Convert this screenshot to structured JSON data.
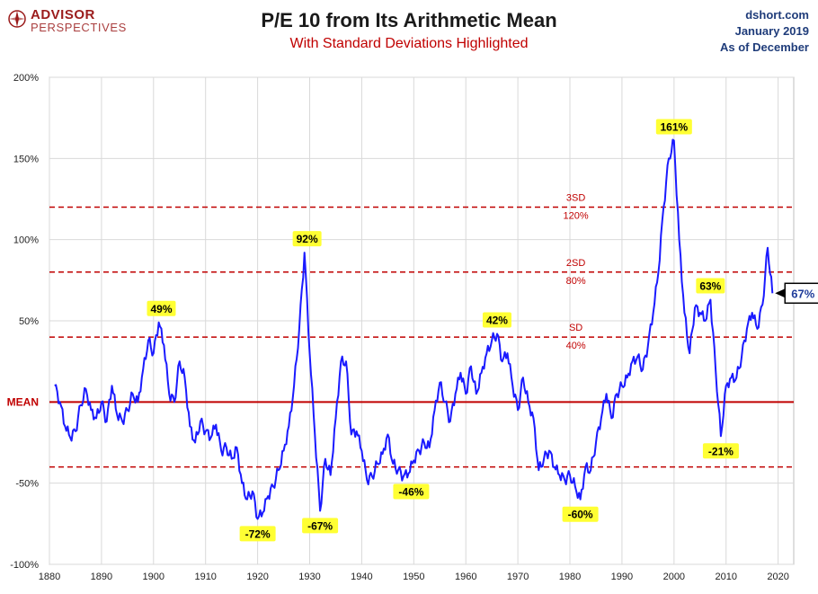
{
  "header": {
    "logo_line1": "ADVISOR",
    "logo_line2": "PERSPECTIVES",
    "title": "P/E 10 from Its Arithmetic Mean",
    "subtitle": "With Standard Deviations Highlighted",
    "source_line1": "dshort.com",
    "source_line2": "January 2019",
    "source_line3": "As of December"
  },
  "colors": {
    "series": "#1a1aff",
    "reference": "#c00000",
    "callout_bg": "#ffff33",
    "grid": "#d9d9d9"
  },
  "chart_data": {
    "type": "line",
    "xlim": [
      1880,
      2023
    ],
    "ylim": [
      -100,
      200
    ],
    "x_ticks": [
      1880,
      1890,
      1900,
      1910,
      1920,
      1930,
      1940,
      1950,
      1960,
      1970,
      1980,
      1990,
      2000,
      2010,
      2020
    ],
    "y_ticks": [
      {
        "value": 200,
        "label": "200%"
      },
      {
        "value": 150,
        "label": "150%"
      },
      {
        "value": 100,
        "label": "100%"
      },
      {
        "value": 50,
        "label": "50%"
      },
      {
        "value": 0,
        "label": "MEAN"
      },
      {
        "value": -50,
        "label": "-50%"
      },
      {
        "value": -100,
        "label": "-100%"
      }
    ],
    "grid": true,
    "reference_lines": [
      {
        "value": 0,
        "label": "MEAN",
        "style": "solid"
      },
      {
        "value": 40,
        "label_top": "SD",
        "label_bottom": "40%",
        "style": "dashed"
      },
      {
        "value": 80,
        "label_top": "2SD",
        "label_bottom": "80%",
        "style": "dashed"
      },
      {
        "value": 120,
        "label_top": "3SD",
        "label_bottom": "120%",
        "style": "dashed"
      },
      {
        "value": -40,
        "style": "dashed"
      }
    ],
    "series": [
      {
        "points": [
          [
            1881,
            10
          ],
          [
            1882,
            0
          ],
          [
            1883,
            -15
          ],
          [
            1884,
            -22
          ],
          [
            1885,
            -18
          ],
          [
            1886,
            -2
          ],
          [
            1887,
            8
          ],
          [
            1888,
            -5
          ],
          [
            1889,
            -10
          ],
          [
            1890,
            0
          ],
          [
            1891,
            -12
          ],
          [
            1892,
            10
          ],
          [
            1893,
            -8
          ],
          [
            1894,
            -12
          ],
          [
            1895,
            -5
          ],
          [
            1896,
            5
          ],
          [
            1897,
            0
          ],
          [
            1898,
            20
          ],
          [
            1899,
            38
          ],
          [
            1900,
            30
          ],
          [
            1901,
            49
          ],
          [
            1902,
            35
          ],
          [
            1903,
            5
          ],
          [
            1904,
            0
          ],
          [
            1905,
            25
          ],
          [
            1906,
            15
          ],
          [
            1907,
            -15
          ],
          [
            1908,
            -25
          ],
          [
            1909,
            -12
          ],
          [
            1910,
            -18
          ],
          [
            1911,
            -22
          ],
          [
            1912,
            -14
          ],
          [
            1913,
            -30
          ],
          [
            1914,
            -28
          ],
          [
            1915,
            -35
          ],
          [
            1916,
            -28
          ],
          [
            1917,
            -50
          ],
          [
            1918,
            -60
          ],
          [
            1919,
            -55
          ],
          [
            1920,
            -72
          ],
          [
            1921,
            -68
          ],
          [
            1922,
            -58
          ],
          [
            1923,
            -52
          ],
          [
            1924,
            -42
          ],
          [
            1925,
            -30
          ],
          [
            1926,
            -15
          ],
          [
            1927,
            10
          ],
          [
            1928,
            45
          ],
          [
            1929,
            92
          ],
          [
            1930,
            30
          ],
          [
            1931,
            -20
          ],
          [
            1932,
            -67
          ],
          [
            1933,
            -35
          ],
          [
            1934,
            -45
          ],
          [
            1935,
            -10
          ],
          [
            1936,
            25
          ],
          [
            1937,
            25
          ],
          [
            1938,
            -20
          ],
          [
            1939,
            -18
          ],
          [
            1940,
            -30
          ],
          [
            1941,
            -48
          ],
          [
            1942,
            -46
          ],
          [
            1943,
            -38
          ],
          [
            1944,
            -32
          ],
          [
            1945,
            -20
          ],
          [
            1946,
            -38
          ],
          [
            1947,
            -42
          ],
          [
            1948,
            -46
          ],
          [
            1949,
            -44
          ],
          [
            1950,
            -36
          ],
          [
            1951,
            -30
          ],
          [
            1952,
            -25
          ],
          [
            1953,
            -28
          ],
          [
            1954,
            -5
          ],
          [
            1955,
            12
          ],
          [
            1956,
            0
          ],
          [
            1957,
            -12
          ],
          [
            1958,
            5
          ],
          [
            1959,
            18
          ],
          [
            1960,
            5
          ],
          [
            1961,
            22
          ],
          [
            1962,
            5
          ],
          [
            1963,
            18
          ],
          [
            1964,
            30
          ],
          [
            1965,
            38
          ],
          [
            1966,
            42
          ],
          [
            1967,
            25
          ],
          [
            1968,
            30
          ],
          [
            1969,
            10
          ],
          [
            1970,
            -5
          ],
          [
            1971,
            15
          ],
          [
            1972,
            0
          ],
          [
            1973,
            -10
          ],
          [
            1974,
            -42
          ],
          [
            1975,
            -35
          ],
          [
            1976,
            -30
          ],
          [
            1977,
            -40
          ],
          [
            1978,
            -45
          ],
          [
            1979,
            -48
          ],
          [
            1980,
            -45
          ],
          [
            1981,
            -52
          ],
          [
            1982,
            -60
          ],
          [
            1983,
            -40
          ],
          [
            1984,
            -42
          ],
          [
            1985,
            -25
          ],
          [
            1986,
            -10
          ],
          [
            1987,
            5
          ],
          [
            1988,
            -10
          ],
          [
            1989,
            5
          ],
          [
            1990,
            10
          ],
          [
            1991,
            15
          ],
          [
            1992,
            25
          ],
          [
            1993,
            28
          ],
          [
            1994,
            20
          ],
          [
            1995,
            35
          ],
          [
            1996,
            55
          ],
          [
            1997,
            80
          ],
          [
            1998,
            120
          ],
          [
            1999,
            150
          ],
          [
            2000,
            161
          ],
          [
            2001,
            100
          ],
          [
            2002,
            55
          ],
          [
            2003,
            30
          ],
          [
            2004,
            58
          ],
          [
            2005,
            55
          ],
          [
            2006,
            50
          ],
          [
            2007,
            63
          ],
          [
            2008,
            20
          ],
          [
            2009,
            -21
          ],
          [
            2010,
            10
          ],
          [
            2011,
            15
          ],
          [
            2012,
            15
          ],
          [
            2013,
            28
          ],
          [
            2014,
            45
          ],
          [
            2015,
            55
          ],
          [
            2016,
            45
          ],
          [
            2017,
            60
          ],
          [
            2018,
            95
          ],
          [
            2018.9,
            67
          ]
        ]
      }
    ],
    "annotations": [
      {
        "x": 1901.5,
        "y": 49,
        "label": "49%",
        "pos": "above"
      },
      {
        "x": 1929.5,
        "y": 92,
        "label": "92%",
        "pos": "above"
      },
      {
        "x": 1932,
        "y": -67,
        "label": "-67%",
        "pos": "below"
      },
      {
        "x": 1920,
        "y": -72,
        "label": "-72%",
        "pos": "below"
      },
      {
        "x": 1949.5,
        "y": -46,
        "label": "-46%",
        "pos": "below"
      },
      {
        "x": 1966,
        "y": 42,
        "label": "42%",
        "pos": "above"
      },
      {
        "x": 1982,
        "y": -60,
        "label": "-60%",
        "pos": "below"
      },
      {
        "x": 2000,
        "y": 161,
        "label": "161%",
        "pos": "above"
      },
      {
        "x": 2007,
        "y": 63,
        "label": "63%",
        "pos": "above"
      },
      {
        "x": 2009,
        "y": -21,
        "label": "-21%",
        "pos": "below"
      }
    ],
    "current_value": {
      "x": 2018.9,
      "y": 67,
      "label": "67%"
    }
  }
}
